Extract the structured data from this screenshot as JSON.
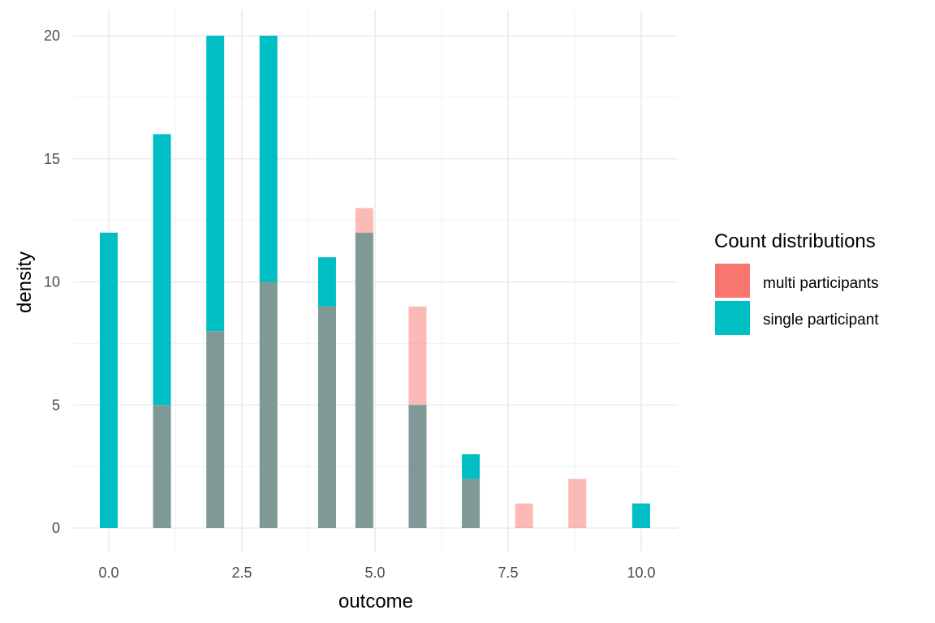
{
  "chart_data": {
    "type": "bar",
    "title": "",
    "xlabel": "outcome",
    "ylabel": "density",
    "xlim": [
      -0.7,
      10.7
    ],
    "ylim": [
      -0.9,
      21.0
    ],
    "x_ticks": [
      "0.0",
      "2.5",
      "5.0",
      "7.5",
      "10.0"
    ],
    "x_tick_values": [
      0,
      2.5,
      5,
      7.5,
      10
    ],
    "y_ticks": [
      "0",
      "5",
      "10",
      "15",
      "20"
    ],
    "y_tick_values": [
      0,
      5,
      10,
      15,
      20
    ],
    "grid": true,
    "legend": {
      "title": "Count distributions",
      "position": "right",
      "entries": [
        {
          "name": "multi participants",
          "color": "#F8766D"
        },
        {
          "name": "single participant",
          "color": "#00BFC4"
        }
      ]
    },
    "overlay_color": "#7F9A96",
    "series": [
      {
        "name": "single participant",
        "color": "#00BFC4",
        "x": [
          0,
          1,
          2,
          3,
          4.1,
          4.8,
          5.8,
          6.8,
          10
        ],
        "values": [
          12,
          16,
          20,
          20,
          11,
          12,
          5,
          3,
          1
        ]
      },
      {
        "name": "multi participants",
        "color": "#F8766D",
        "x": [
          1,
          2,
          3,
          4.1,
          4.8,
          5.8,
          6.8,
          7.8,
          8.8
        ],
        "values": [
          5,
          8,
          10,
          9,
          13,
          9,
          2,
          1,
          2
        ]
      }
    ]
  }
}
